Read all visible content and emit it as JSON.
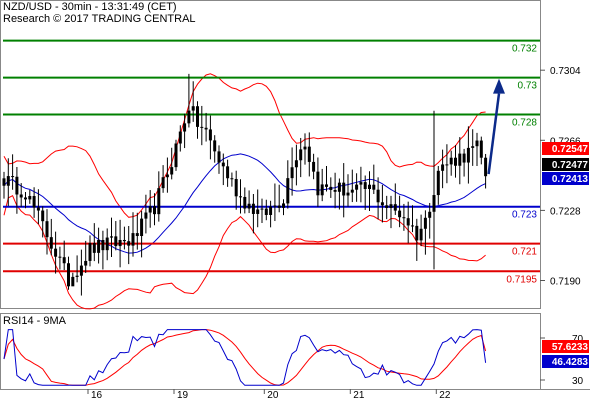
{
  "header": {
    "title": "NZD/USD - 30min - 13:31:49 (CET)",
    "subtitle": "Research © 2017 TRADING CENTRAL"
  },
  "rsi_header": {
    "label": "RSI14 - 9MA"
  },
  "colors": {
    "candle": "#000000",
    "bollinger": "#ff0000",
    "moving_average": "#0000cc",
    "support": "#e00000",
    "pivot": "#0000cc",
    "resistance": "#008000",
    "arrow": "#0c2a8a",
    "rsi": "#0000cc",
    "rsi_ma": "#ff0000"
  },
  "chart_data": [
    {
      "type": "candlestick",
      "title": "NZD/USD - 30min - 13:31:49 (CET)",
      "x_tick_labels": [
        "16",
        "19",
        "20",
        "21",
        "22"
      ],
      "y_tick_labels": [
        "0.7304",
        "0.7266",
        "0.7228",
        "0.7190"
      ],
      "ylim": [
        0.7175,
        0.7335
      ],
      "grid": false,
      "levels": [
        {
          "label": "0.732",
          "value": 0.732,
          "kind": "resistance"
        },
        {
          "label": "0.73",
          "value": 0.73,
          "kind": "resistance"
        },
        {
          "label": "0.728",
          "value": 0.728,
          "kind": "resistance"
        },
        {
          "label": "0.723",
          "value": 0.723,
          "kind": "pivot"
        },
        {
          "label": "0.721",
          "value": 0.721,
          "kind": "support"
        },
        {
          "label": "0.7195",
          "value": 0.7195,
          "kind": "support"
        }
      ],
      "price_tags": [
        {
          "label": "0.72547",
          "value": 0.72547,
          "color": "#ff0000"
        },
        {
          "label": "0.72477",
          "value": 0.72477,
          "color": "#000000"
        },
        {
          "label": "0.72413",
          "value": 0.72413,
          "color": "#0000cc"
        }
      ],
      "close_anchors": [
        [
          0,
          0.7245
        ],
        [
          5,
          0.7238
        ],
        [
          10,
          0.7215
        ],
        [
          15,
          0.719
        ],
        [
          20,
          0.7207
        ],
        [
          25,
          0.721
        ],
        [
          30,
          0.7212
        ],
        [
          35,
          0.723
        ],
        [
          39,
          0.7255
        ],
        [
          43,
          0.7285
        ],
        [
          45,
          0.7275
        ],
        [
          47,
          0.727
        ],
        [
          50,
          0.7255
        ],
        [
          55,
          0.7235
        ],
        [
          60,
          0.7225
        ],
        [
          65,
          0.7235
        ],
        [
          67,
          0.7255
        ],
        [
          70,
          0.7265
        ],
        [
          73,
          0.724
        ],
        [
          77,
          0.724
        ],
        [
          81,
          0.7238
        ],
        [
          85,
          0.724
        ],
        [
          89,
          0.723
        ],
        [
          93,
          0.7225
        ],
        [
          96,
          0.7215
        ],
        [
          98,
          0.7222
        ],
        [
          101,
          0.725
        ],
        [
          104,
          0.7255
        ],
        [
          107,
          0.7258
        ],
        [
          110,
          0.7262
        ],
        [
          112,
          0.7248
        ]
      ],
      "forecast_arrow": {
        "from": 0.72477,
        "to": 0.73
      }
    },
    {
      "type": "line",
      "title": "RSI14 - 9MA",
      "y_tick_labels": [
        "70",
        "30"
      ],
      "ylim": [
        20,
        80
      ],
      "price_tags": [
        {
          "label": "57.6233",
          "value": 57.6233,
          "color": "#ff0000"
        },
        {
          "label": "46.4283",
          "value": 46.4283,
          "color": "#0000cc"
        }
      ],
      "series": [
        {
          "name": "RSI14",
          "color": "#0000cc"
        },
        {
          "name": "9MA",
          "color": "#ff0000"
        }
      ]
    }
  ]
}
